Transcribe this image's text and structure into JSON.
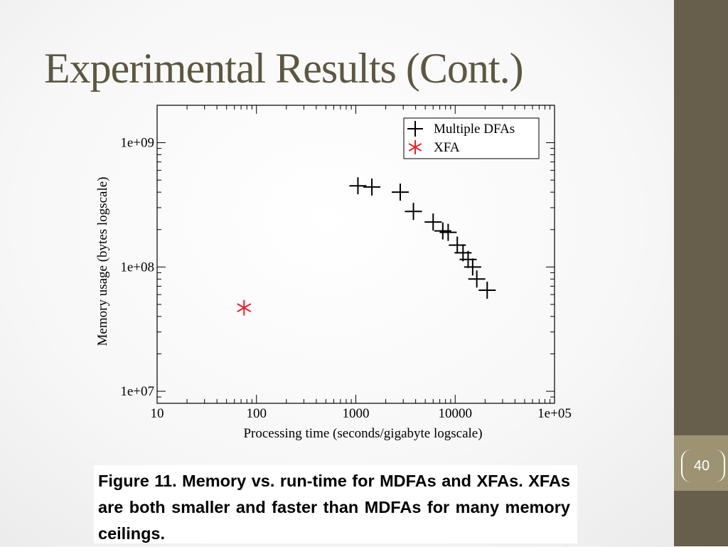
{
  "slide": {
    "title": "Experimental Results (Cont.)",
    "number": "40",
    "caption": "Figure 11. Memory vs. run-time for MDFAs and XFAs.  XFAs are both smaller and faster than MDFAs for many memory ceilings."
  },
  "colors": {
    "sidebar": "#675f4c",
    "number_box": "#9d9372",
    "title": "#5e5740",
    "xfa_marker": "#e8202a",
    "mdfa_marker": "#000000"
  },
  "chart_data": {
    "type": "scatter",
    "title": "",
    "xlabel": "Processing time (seconds/gigabyte logscale)",
    "ylabel": "Memory usage (bytes logscale)",
    "xscale": "log",
    "yscale": "log",
    "xlim": [
      10,
      100000
    ],
    "ylim": [
      8000000,
      2000000000
    ],
    "x_ticks": [
      {
        "value": 10,
        "label": "10"
      },
      {
        "value": 100,
        "label": "100"
      },
      {
        "value": 1000,
        "label": "1000"
      },
      {
        "value": 10000,
        "label": "10000"
      },
      {
        "value": 100000,
        "label": "1e+05"
      }
    ],
    "y_ticks": [
      {
        "value": 10000000,
        "label": "1e+07"
      },
      {
        "value": 100000000,
        "label": "1e+08"
      },
      {
        "value": 1000000000,
        "label": "1e+09"
      }
    ],
    "grid": false,
    "legend_position": "top-right",
    "series": [
      {
        "name": "Multiple DFAs",
        "marker": "plus",
        "color": "#000000",
        "points": [
          {
            "x": 1050,
            "y": 450000000
          },
          {
            "x": 1450,
            "y": 440000000
          },
          {
            "x": 2800,
            "y": 400000000
          },
          {
            "x": 3800,
            "y": 280000000
          },
          {
            "x": 6000,
            "y": 230000000
          },
          {
            "x": 7500,
            "y": 195000000
          },
          {
            "x": 8500,
            "y": 190000000
          },
          {
            "x": 10500,
            "y": 150000000
          },
          {
            "x": 12000,
            "y": 130000000
          },
          {
            "x": 13500,
            "y": 115000000
          },
          {
            "x": 15000,
            "y": 100000000
          },
          {
            "x": 16500,
            "y": 80000000
          },
          {
            "x": 21000,
            "y": 65000000
          }
        ]
      },
      {
        "name": "XFA",
        "marker": "asterisk",
        "color": "#e8202a",
        "points": [
          {
            "x": 75,
            "y": 47000000
          }
        ]
      }
    ]
  }
}
